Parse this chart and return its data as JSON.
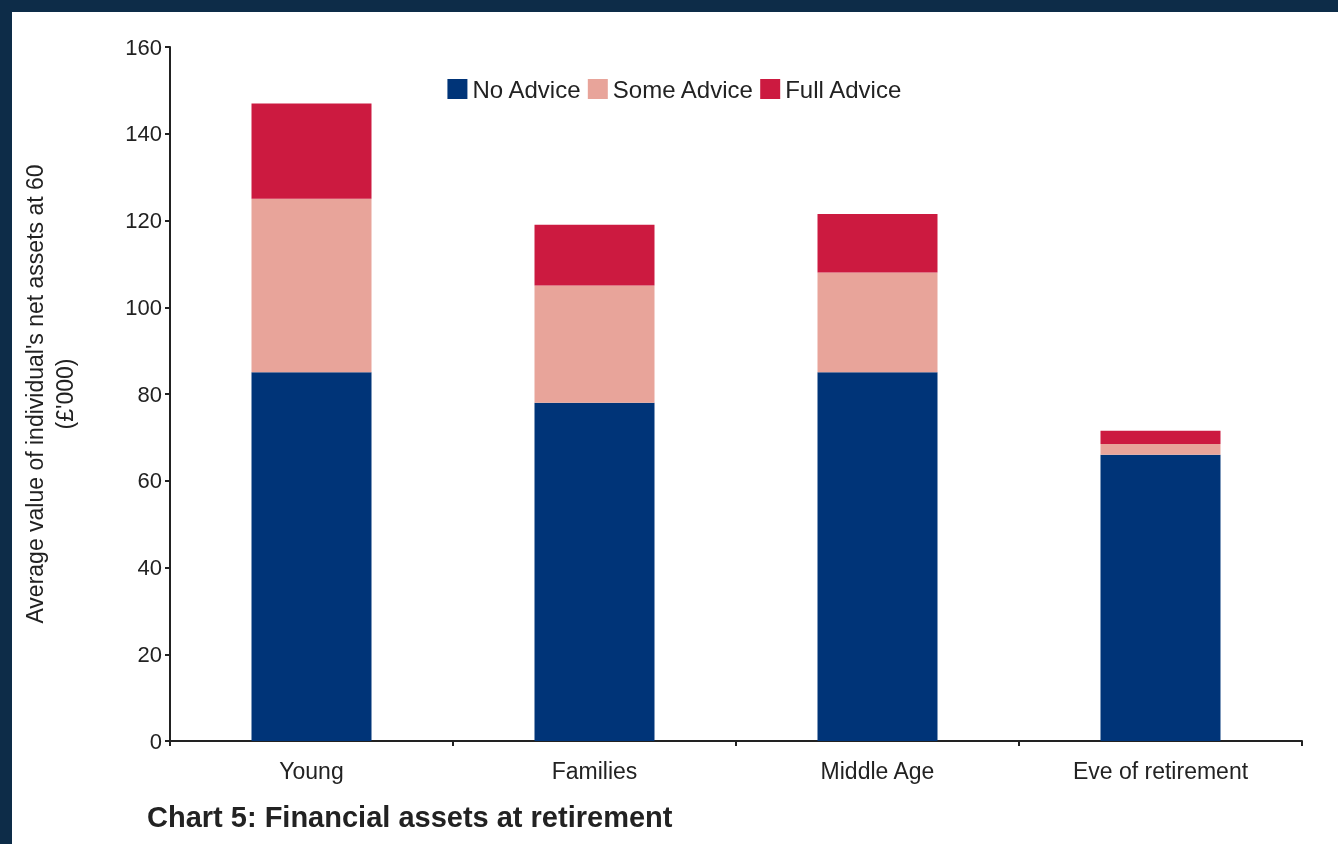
{
  "chart_data": {
    "type": "bar",
    "stacked": true,
    "title": "Chart 5: Financial assets at retirement",
    "ylabel": "Average value of individual's net assets at 60\n(£'000)",
    "categories": [
      "Young",
      "Families",
      "Middle Age",
      "Eve of retirement"
    ],
    "series": [
      {
        "name": "No Advice",
        "color": "#003478",
        "values": [
          85,
          78,
          85,
          66
        ]
      },
      {
        "name": "Some Advice",
        "color": "#e8a49a",
        "values": [
          40,
          27,
          23,
          2.5
        ]
      },
      {
        "name": "Full Advice",
        "color": "#cc1a40",
        "values": [
          22,
          14,
          13.5,
          3
        ]
      }
    ],
    "ylim": [
      0,
      160
    ],
    "yticks": [
      0,
      20,
      40,
      60,
      80,
      100,
      120,
      140,
      160
    ],
    "grid": false,
    "legend": "top"
  }
}
